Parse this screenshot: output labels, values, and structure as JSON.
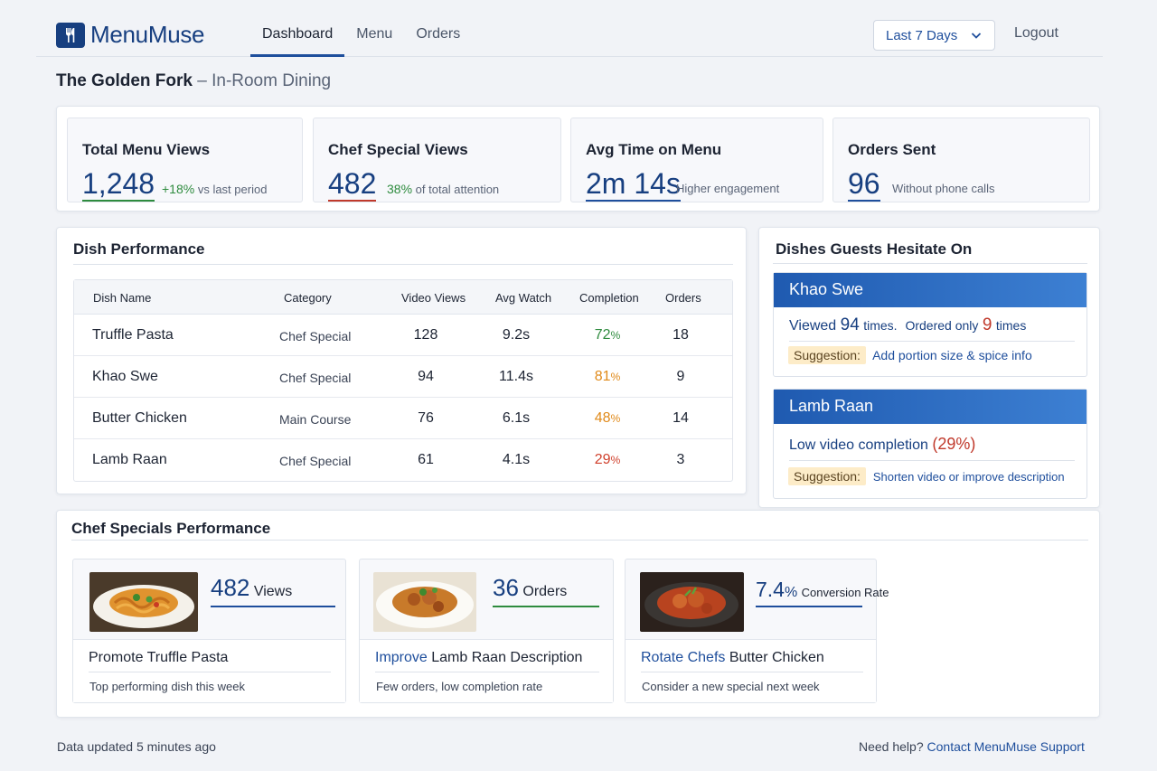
{
  "app": {
    "name": "MenuMuse"
  },
  "nav": {
    "items": [
      {
        "label": "Dashboard",
        "active": true
      },
      {
        "label": "Menu",
        "active": false
      },
      {
        "label": "Orders",
        "active": false
      }
    ]
  },
  "date_range": {
    "selected": "Last 7 Days"
  },
  "logout_label": "Logout",
  "venue": {
    "name": "The Golden Fork",
    "separator": "–",
    "context": "In-Room Dining"
  },
  "kpis": [
    {
      "title": "Total Menu Views",
      "value": "1,248",
      "note_accent": "+18%",
      "note": "vs last period",
      "underline": "#2e8b3e"
    },
    {
      "title": "Chef Special Views",
      "value": "482",
      "note_accent": "38%",
      "note": "of total attention",
      "underline": "#c0392b"
    },
    {
      "title": "Avg Time on Menu",
      "value": "2m 14s",
      "note_accent": "",
      "note": "Higher engagement",
      "underline": "#1e4e9c"
    },
    {
      "title": "Orders Sent",
      "value": "96",
      "note_accent": "",
      "note": "Without phone calls",
      "underline": "#1e4e9c"
    }
  ],
  "dish_performance": {
    "title": "Dish Performance",
    "columns": [
      "Dish Name",
      "Category",
      "Video Views",
      "Avg Watch",
      "Completion",
      "Orders"
    ],
    "rows": [
      {
        "name": "Truffle Pasta",
        "category": "Chef Special",
        "views": "128",
        "avg_watch": "9.2s",
        "completion": "72",
        "orders": "18",
        "completion_color": "#2e8b3e"
      },
      {
        "name": "Khao Swe",
        "category": "Chef Special",
        "views": "94",
        "avg_watch": "11.4s",
        "completion": "81",
        "orders": "9",
        "completion_color": "#e08a1a"
      },
      {
        "name": "Butter Chicken",
        "category": "Main Course",
        "views": "76",
        "avg_watch": "6.1s",
        "completion": "48",
        "orders": "14",
        "completion_color": "#e08a1a"
      },
      {
        "name": "Lamb Raan",
        "category": "Chef Special",
        "views": "61",
        "avg_watch": "4.1s",
        "completion": "29",
        "orders": "3",
        "completion_color": "#d0402c"
      }
    ],
    "percent_sign": "%"
  },
  "hesitate": {
    "title": "Dishes Guests Hesitate On",
    "cards": [
      {
        "dish": "Khao Swe",
        "line_parts": [
          "Viewed",
          "94",
          "times.",
          "Ordered only",
          "9",
          "times"
        ],
        "suggestion_label": "Suggestion:",
        "suggestion": "Add portion size & spice info"
      },
      {
        "dish": "Lamb Raan",
        "line_parts": [
          "Low video completion",
          "(29%)"
        ],
        "suggestion_label": "Suggestion:",
        "suggestion": "Shorten video or improve description"
      }
    ]
  },
  "chef_specials": {
    "title": "Chef Specials Performance",
    "cards": [
      {
        "stat_value": "482",
        "stat_unit": "Views",
        "title_prefix": "",
        "title": "Promote Truffle Pasta",
        "subtitle": "Top performing dish this week"
      },
      {
        "stat_value": "36",
        "stat_unit": "Orders",
        "title_prefix": "Improve",
        "title": "Lamb Raan Description",
        "subtitle": "Few orders, low completion rate"
      },
      {
        "stat_value": "7.4",
        "stat_pct": "%",
        "stat_unit": "Conversion Rate",
        "title_prefix": "Rotate Chefs",
        "title": "Butter Chicken",
        "subtitle": "Consider a new special next week"
      }
    ]
  },
  "footer": {
    "updated": "Data updated 5 minutes ago",
    "help_prefix": "Need help?",
    "help_link": "Contact MenuMuse Support"
  },
  "colors": {
    "brand": "#173f80",
    "accent": "#1e4e9c",
    "positive": "#2e8b3e",
    "warning": "#e08a1a",
    "negative": "#d0402c"
  }
}
